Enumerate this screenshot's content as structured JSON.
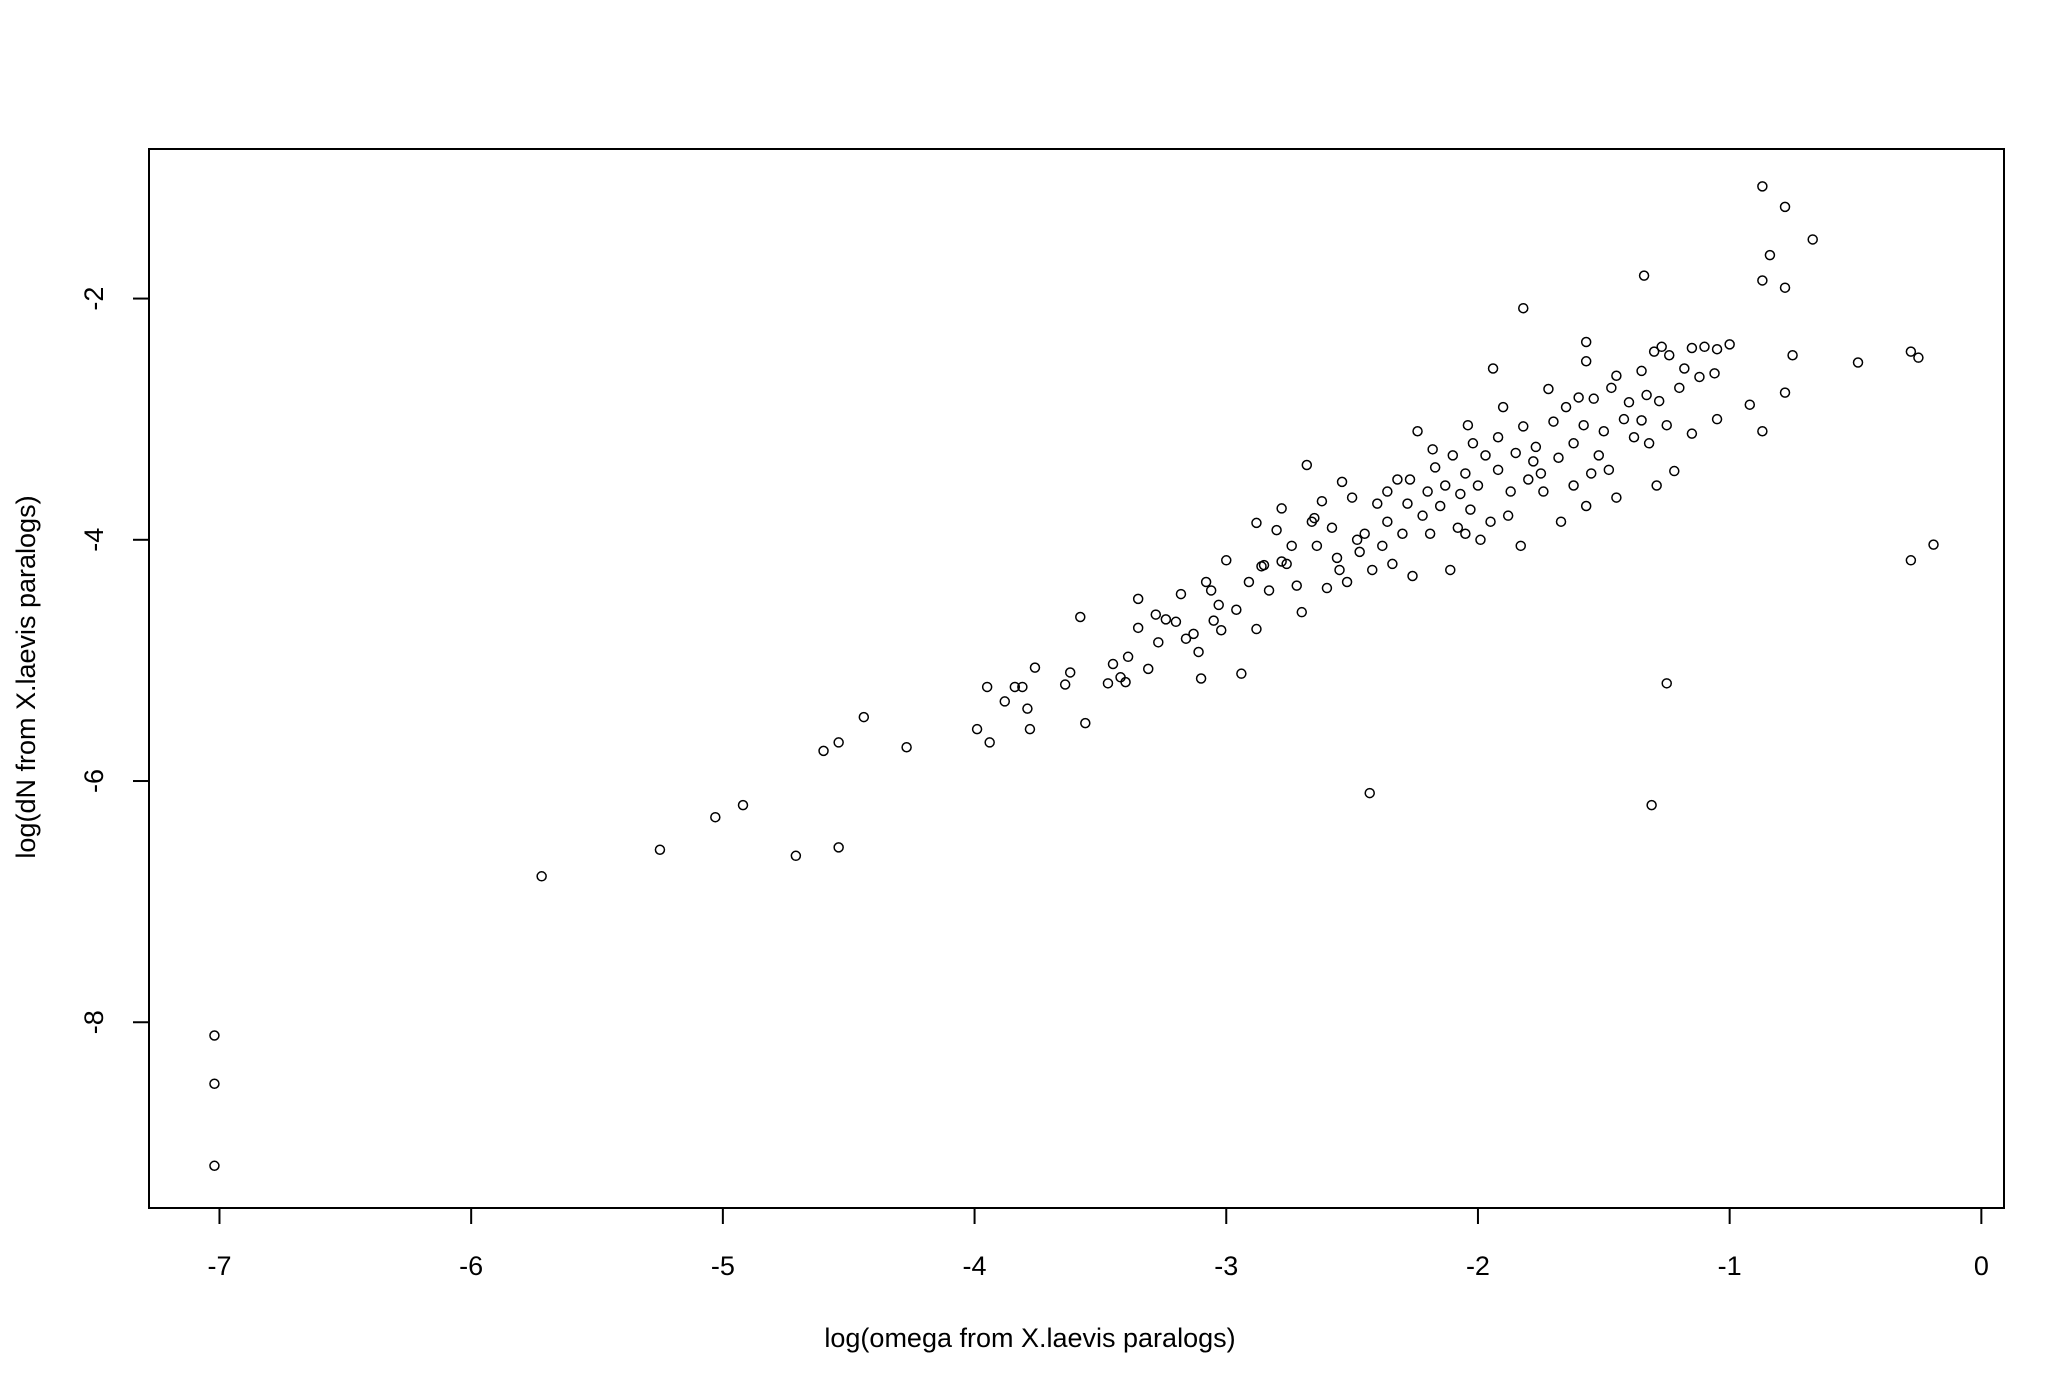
{
  "chart_data": {
    "type": "scatter",
    "xlabel": "log(omega from X.laevis paralogs)",
    "ylabel": "log(dN from X.laevis paralogs)",
    "color": "#000000",
    "xlim": [
      -7.28,
      0.09
    ],
    "ylim": [
      -9.54,
      -0.76
    ],
    "xticks": [
      -7,
      -6,
      -5,
      -4,
      -3,
      -2,
      -1,
      0
    ],
    "yticks": [
      -8,
      -6,
      -4,
      -2
    ],
    "x": [
      -7.02,
      -7.02,
      -7.02,
      -5.72,
      -5.25,
      -5.03,
      -4.92,
      -4.71,
      -4.54,
      -4.54,
      -4.6,
      -4.44,
      -4.27,
      -3.99,
      -3.95,
      -3.94,
      -3.88,
      -3.84,
      -3.81,
      -3.79,
      -3.78,
      -3.76,
      -3.64,
      -3.62,
      -3.58,
      -3.56,
      -3.47,
      -3.45,
      -3.42,
      -3.4,
      -3.39,
      -3.35,
      -3.35,
      -3.31,
      -3.28,
      -3.27,
      -3.24,
      -3.2,
      -3.18,
      -3.16,
      -3.13,
      -3.11,
      -3.1,
      -3.08,
      -3.06,
      -3.05,
      -3.03,
      -3.02,
      -3.0,
      -2.96,
      -2.94,
      -2.91,
      -2.88,
      -2.88,
      -2.85,
      -2.8,
      -2.78,
      -0.87,
      -0.78,
      -0.67,
      -0.84,
      -0.87,
      -0.78,
      -1.34,
      -1.82,
      -0.49,
      -0.28,
      -0.25,
      -0.19,
      -0.28,
      -1.25,
      -1.31,
      -2.43,
      -0.75,
      -0.78,
      -0.87,
      -0.92,
      -1.0,
      -1.05,
      -1.1,
      -1.15,
      -1.06,
      -1.05,
      -1.12,
      -1.15,
      -1.2,
      -1.22,
      -1.29,
      -1.27,
      -1.3,
      -1.28,
      -1.24,
      -1.33,
      -1.35,
      -1.4,
      -1.45,
      -1.47,
      -1.5,
      -1.54,
      -1.57,
      -1.57,
      -1.52,
      -1.55,
      -1.57,
      -1.6,
      -1.62,
      -1.65,
      -1.68,
      -1.7,
      -1.72,
      -1.75,
      -1.77,
      -1.8,
      -1.82,
      -1.85,
      -1.87,
      -1.9,
      -1.92,
      -1.94,
      -1.95,
      -1.97,
      -2.0,
      -2.02,
      -2.03,
      -2.05,
      -2.07,
      -2.08,
      -2.1,
      -2.11,
      -2.13,
      -2.15,
      -2.17,
      -2.19,
      -2.2,
      -2.22,
      -2.24,
      -2.26,
      -2.28,
      -2.3,
      -2.32,
      -2.34,
      -2.36,
      -2.38,
      -2.4,
      -2.42,
      -2.45,
      -2.47,
      -2.5,
      -2.52,
      -2.54,
      -2.56,
      -2.58,
      -2.6,
      -2.62,
      -2.64,
      -2.66,
      -2.68,
      -2.7,
      -2.72,
      -2.74,
      -2.76,
      -2.83,
      -2.86,
      -1.45,
      -1.48,
      -1.38,
      -1.32,
      -1.25,
      -1.18,
      -1.62,
      -1.67,
      -1.74,
      -1.83,
      -1.88,
      -1.99,
      -2.04,
      -2.18,
      -2.27,
      -2.36,
      -2.48,
      -2.55,
      -2.65,
      -2.78,
      -2.05,
      -1.92,
      -1.78,
      -1.58,
      -1.42,
      -1.35
    ],
    "values": [
      -8.11,
      -8.51,
      -9.19,
      -6.79,
      -6.57,
      -6.3,
      -6.2,
      -6.62,
      -6.55,
      -5.68,
      -5.75,
      -5.47,
      -5.72,
      -5.57,
      -5.22,
      -5.68,
      -5.34,
      -5.22,
      -5.22,
      -5.4,
      -5.57,
      -5.06,
      -5.2,
      -5.1,
      -4.64,
      -5.52,
      -5.19,
      -5.03,
      -5.14,
      -5.18,
      -4.97,
      -4.49,
      -4.73,
      -5.07,
      -4.62,
      -4.85,
      -4.66,
      -4.68,
      -4.45,
      -4.82,
      -4.78,
      -4.93,
      -5.15,
      -4.35,
      -4.42,
      -4.67,
      -4.54,
      -4.75,
      -4.17,
      -4.58,
      -5.11,
      -4.35,
      -4.74,
      -3.86,
      -4.21,
      -3.92,
      -3.74,
      -1.07,
      -1.24,
      -1.51,
      -1.64,
      -1.85,
      -1.91,
      -1.81,
      -2.08,
      -2.53,
      -2.44,
      -2.49,
      -4.04,
      -4.17,
      -5.19,
      -6.2,
      -6.1,
      -2.47,
      -2.78,
      -3.1,
      -2.88,
      -2.38,
      -2.42,
      -2.4,
      -2.41,
      -2.62,
      -3.0,
      -2.65,
      -3.12,
      -2.74,
      -3.43,
      -3.55,
      -2.4,
      -2.44,
      -2.85,
      -2.47,
      -2.8,
      -3.01,
      -2.86,
      -2.64,
      -2.74,
      -3.1,
      -2.83,
      -2.52,
      -2.36,
      -3.3,
      -3.45,
      -3.72,
      -2.82,
      -3.2,
      -2.9,
      -3.32,
      -3.02,
      -2.75,
      -3.45,
      -3.23,
      -3.5,
      -3.06,
      -3.28,
      -3.6,
      -2.9,
      -3.42,
      -2.58,
      -3.85,
      -3.3,
      -3.55,
      -3.2,
      -3.75,
      -3.45,
      -3.62,
      -3.9,
      -3.3,
      -4.25,
      -3.55,
      -3.72,
      -3.4,
      -3.95,
      -3.6,
      -3.8,
      -3.1,
      -4.3,
      -3.7,
      -3.95,
      -3.5,
      -4.2,
      -3.85,
      -4.05,
      -3.7,
      -4.25,
      -3.95,
      -4.1,
      -3.65,
      -4.35,
      -3.52,
      -4.15,
      -3.9,
      -4.4,
      -3.68,
      -4.05,
      -3.85,
      -3.38,
      -4.6,
      -4.38,
      -4.05,
      -4.2,
      -4.42,
      -4.22,
      -3.65,
      -3.42,
      -3.15,
      -3.2,
      -3.05,
      -2.58,
      -3.55,
      -3.85,
      -3.6,
      -4.05,
      -3.8,
      -4.0,
      -3.05,
      -3.25,
      -3.5,
      -3.6,
      -4.0,
      -4.25,
      -3.82,
      -4.18,
      -3.95,
      -3.15,
      -3.35,
      -3.05,
      -3.0,
      -2.6
    ]
  }
}
